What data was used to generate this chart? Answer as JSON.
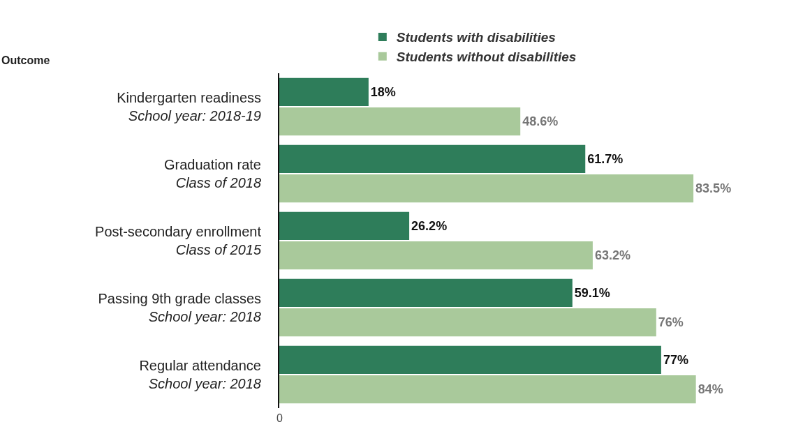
{
  "chart_data": {
    "type": "bar",
    "orientation": "horizontal",
    "ylabel": "Outcome",
    "categories": [
      "Kindergarten readiness\nSchool year: 2018-19",
      "Graduation rate\nClass of 2018",
      "Post-secondary enrollment\nClass of 2015",
      "Passing 9th grade classes\nSchool year: 2018",
      "Regular attendance\nSchool year: 2018"
    ],
    "series": [
      {
        "name": "Students with disabilities",
        "color": "#2e7d5a",
        "values": [
          18,
          61.7,
          26.2,
          59.1,
          77
        ],
        "value_labels": [
          "18%",
          "61.7%",
          "26.2%",
          "59.1%",
          "77%"
        ]
      },
      {
        "name": "Students without disabilities",
        "color": "#a9c99b",
        "values": [
          48.6,
          83.5,
          63.2,
          76,
          84
        ],
        "value_labels": [
          "48.6%",
          "83.5%",
          "63.2%",
          "76%",
          "84%"
        ]
      }
    ],
    "annotations": [
      "0"
    ],
    "legend": "top"
  }
}
